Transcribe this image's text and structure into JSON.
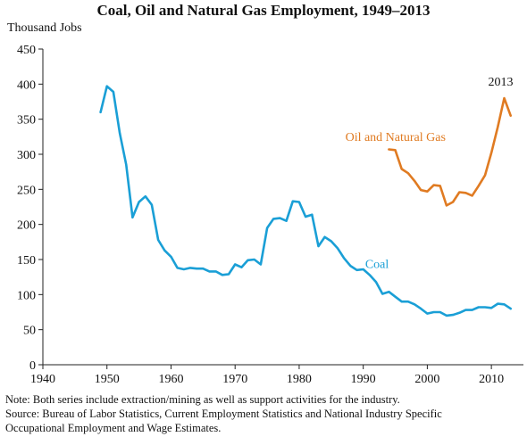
{
  "title": "Coal, Oil and Natural Gas Employment, 1949–2013",
  "notes": {
    "note": "Note: Both series include extraction/mining as well as support activities for the industry.",
    "source_line1": "Source: Bureau of Labor Statistics, Current Employment Statistics and National Industry Specific",
    "source_line2": "Occupational Employment and Wage Estimates."
  },
  "annotations": {
    "year_2013": "2013",
    "oil_label": "Oil and Natural Gas",
    "coal_label": "Coal"
  },
  "colors": {
    "coal": "#1a9fd6",
    "oil": "#e07b22",
    "axis": "#222222"
  },
  "chart_data": {
    "type": "line",
    "title": "Coal, Oil and Natural Gas Employment, 1949–2013",
    "ylabel": "Thousand Jobs",
    "xlim": [
      1940,
      2015
    ],
    "ylim": [
      0,
      450
    ],
    "xticks": [
      1940,
      1950,
      1960,
      1970,
      1980,
      1990,
      2000,
      2010
    ],
    "yticks": [
      0,
      50,
      100,
      150,
      200,
      250,
      300,
      350,
      400,
      450
    ],
    "grid": false,
    "series": [
      {
        "name": "Coal",
        "x": [
          1949,
          1950,
          1951,
          1952,
          1953,
          1954,
          1955,
          1956,
          1957,
          1958,
          1959,
          1960,
          1961,
          1962,
          1963,
          1964,
          1965,
          1966,
          1967,
          1968,
          1969,
          1970,
          1971,
          1972,
          1973,
          1974,
          1975,
          1976,
          1977,
          1978,
          1979,
          1980,
          1981,
          1982,
          1983,
          1984,
          1985,
          1986,
          1987,
          1988,
          1989,
          1990,
          1991,
          1992,
          1993,
          1994,
          1995,
          1996,
          1997,
          1998,
          1999,
          2000,
          2001,
          2002,
          2003,
          2004,
          2005,
          2006,
          2007,
          2008,
          2009,
          2010,
          2011,
          2012,
          2013
        ],
        "values": [
          360,
          397,
          389,
          330,
          285,
          210,
          232,
          240,
          228,
          178,
          163,
          154,
          138,
          136,
          138,
          137,
          137,
          133,
          133,
          128,
          129,
          143,
          139,
          149,
          150,
          143,
          195,
          208,
          209,
          205,
          233,
          232,
          211,
          214,
          169,
          182,
          176,
          166,
          152,
          141,
          135,
          136,
          128,
          118,
          101,
          104,
          97,
          90,
          90,
          86,
          80,
          73,
          75,
          75,
          70,
          71,
          74,
          78,
          78,
          82,
          82,
          81,
          87,
          86,
          80
        ]
      },
      {
        "name": "Oil and Natural Gas",
        "x": [
          1994,
          1995,
          1996,
          1997,
          1998,
          1999,
          2000,
          2001,
          2002,
          2003,
          2004,
          2005,
          2006,
          2007,
          2008,
          2009,
          2010,
          2011,
          2012,
          2013
        ],
        "values": [
          307,
          306,
          279,
          273,
          262,
          249,
          247,
          256,
          255,
          227,
          232,
          246,
          245,
          241,
          255,
          270,
          302,
          339,
          380,
          355
        ]
      }
    ]
  }
}
